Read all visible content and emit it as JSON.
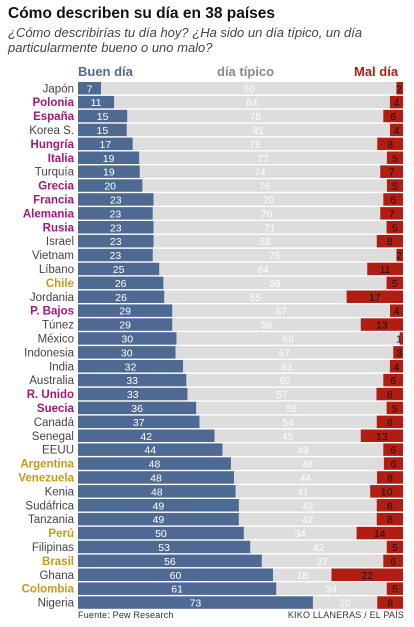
{
  "title": "Cómo describen su día en 38 países",
  "subtitle": "¿Cómo describirías tu día hoy? ¿Ha sido un día típico, un día particularmente bueno o uno malo?",
  "source": "Fuente: Pew Research",
  "credit": "KIKO LLANERAS / EL PAÍS",
  "colors": {
    "good": "#4e6a93",
    "typical": "#dddddd",
    "bad": "#b11d10",
    "country_default": "#444444",
    "country_highlight_purple": "#a4177f",
    "country_highlight_gold": "#c99a19",
    "typical_label": "#ffffff"
  },
  "chart_data": {
    "type": "bar",
    "stacked": true,
    "orientation": "horizontal",
    "header_labels": [
      "Buen día",
      "día típico",
      "Mal día"
    ],
    "categories": [
      "Japón",
      "Polonia",
      "España",
      "Korea S.",
      "Hungría",
      "Italia",
      "Turquía",
      "Grecia",
      "Francia",
      "Alemania",
      "Rusia",
      "Israel",
      "Vietnam",
      "Líbano",
      "Chile",
      "Jordania",
      "P. Bajos",
      "Túnez",
      "México",
      "Indonesia",
      "India",
      "Australia",
      "R. Unido",
      "Suecia",
      "Canadá",
      "Senegal",
      "EEUU",
      "Argentina",
      "Venezuela",
      "Kenia",
      "Sudáfrica",
      "Tanzania",
      "Perú",
      "Filipinas",
      "Brasil",
      "Ghana",
      "Colombia",
      "Nigeria"
    ],
    "highlight": [
      "default",
      "purple",
      "purple",
      "default",
      "purple",
      "purple",
      "default",
      "purple",
      "purple",
      "purple",
      "purple",
      "default",
      "default",
      "default",
      "gold",
      "default",
      "purple",
      "default",
      "default",
      "default",
      "default",
      "default",
      "purple",
      "purple",
      "default",
      "default",
      "default",
      "gold",
      "gold",
      "default",
      "default",
      "default",
      "gold",
      "default",
      "gold",
      "default",
      "gold",
      "default"
    ],
    "series": [
      {
        "name": "Buen día",
        "values": [
          7,
          11,
          15,
          15,
          17,
          19,
          19,
          20,
          23,
          23,
          23,
          23,
          23,
          25,
          26,
          26,
          29,
          29,
          30,
          30,
          32,
          33,
          33,
          36,
          37,
          42,
          44,
          48,
          48,
          48,
          49,
          49,
          50,
          53,
          56,
          60,
          61,
          73
        ]
      },
      {
        "name": "día típico",
        "values": [
          90,
          84,
          78,
          81,
          76,
          77,
          74,
          76,
          70,
          70,
          71,
          68,
          75,
          64,
          68,
          55,
          67,
          58,
          68,
          67,
          63,
          60,
          57,
          58,
          54,
          45,
          49,
          48,
          44,
          41,
          42,
          42,
          34,
          42,
          37,
          18,
          34,
          20
        ]
      },
      {
        "name": "Mal día",
        "values": [
          2,
          4,
          6,
          4,
          8,
          5,
          7,
          5,
          6,
          7,
          5,
          8,
          2,
          11,
          5,
          17,
          4,
          13,
          1,
          3,
          4,
          6,
          8,
          5,
          8,
          13,
          6,
          6,
          8,
          10,
          8,
          8,
          14,
          5,
          6,
          22,
          5,
          8
        ]
      }
    ]
  }
}
